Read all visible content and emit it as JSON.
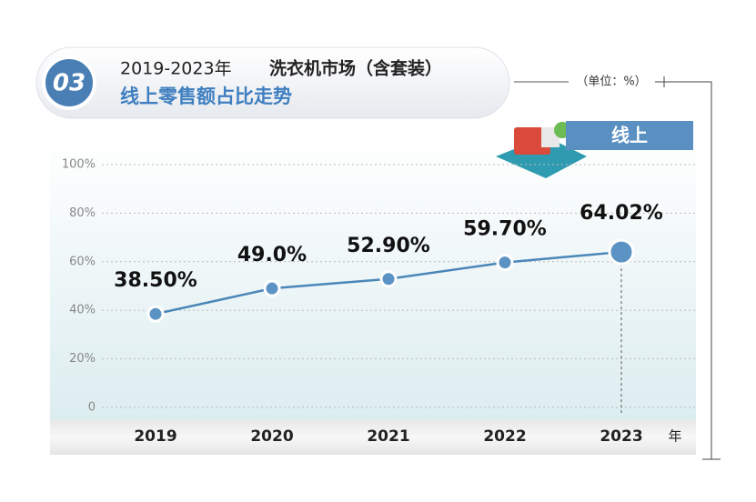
{
  "chart_data": {
    "type": "line",
    "badge": "03",
    "title": "2019-2023年",
    "title_highlight": "洗衣机市场（含套装）",
    "subtitle": "线上零售额占比走势",
    "unit": "（单位：%）",
    "series_label": "线上",
    "xlabel": "年",
    "categories": [
      "2019",
      "2020",
      "2021",
      "2022",
      "2023"
    ],
    "values": [
      38.5,
      49.0,
      52.9,
      59.7,
      64.02
    ],
    "value_labels": [
      "38.50%",
      "49.0%",
      "52.90%",
      "59.70%",
      "64.02%"
    ],
    "color": "#4a86b8",
    "ylim": [
      0,
      100
    ],
    "yticks": [
      0,
      {
        "value": 20,
        "label": "20%"
      },
      {
        "value": 40,
        "label": "40%"
      },
      {
        "value": 60,
        "label": "60%"
      },
      {
        "value": 80,
        "label": "80%"
      },
      {
        "value": 100,
        "label": "100%"
      }
    ],
    "grid": true
  }
}
